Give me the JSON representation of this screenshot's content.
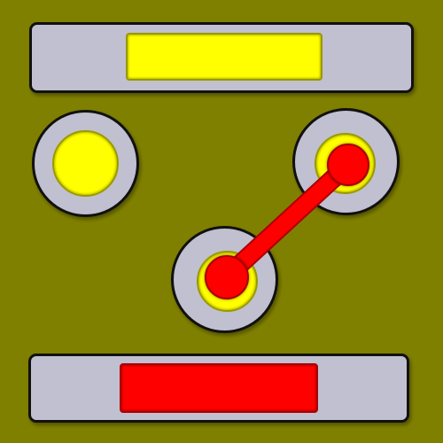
{
  "colors": {
    "background": "#808000",
    "panel": "#c0c0d0",
    "outline": "#111111",
    "target": "#ffff00",
    "target_border": "#999900",
    "piece": "#ff0000",
    "piece_border": "#aa0000"
  },
  "top_bar": {
    "slot_color": "target"
  },
  "bottom_bar": {
    "slot_color": "piece"
  },
  "sockets": [
    {
      "id": "left",
      "well": "target",
      "has_peg": false
    },
    {
      "id": "right",
      "well": "target",
      "has_peg": true
    },
    {
      "id": "center",
      "well": "target",
      "has_peg": true
    }
  ],
  "connector": {
    "from": "center",
    "to": "right",
    "color": "piece"
  }
}
